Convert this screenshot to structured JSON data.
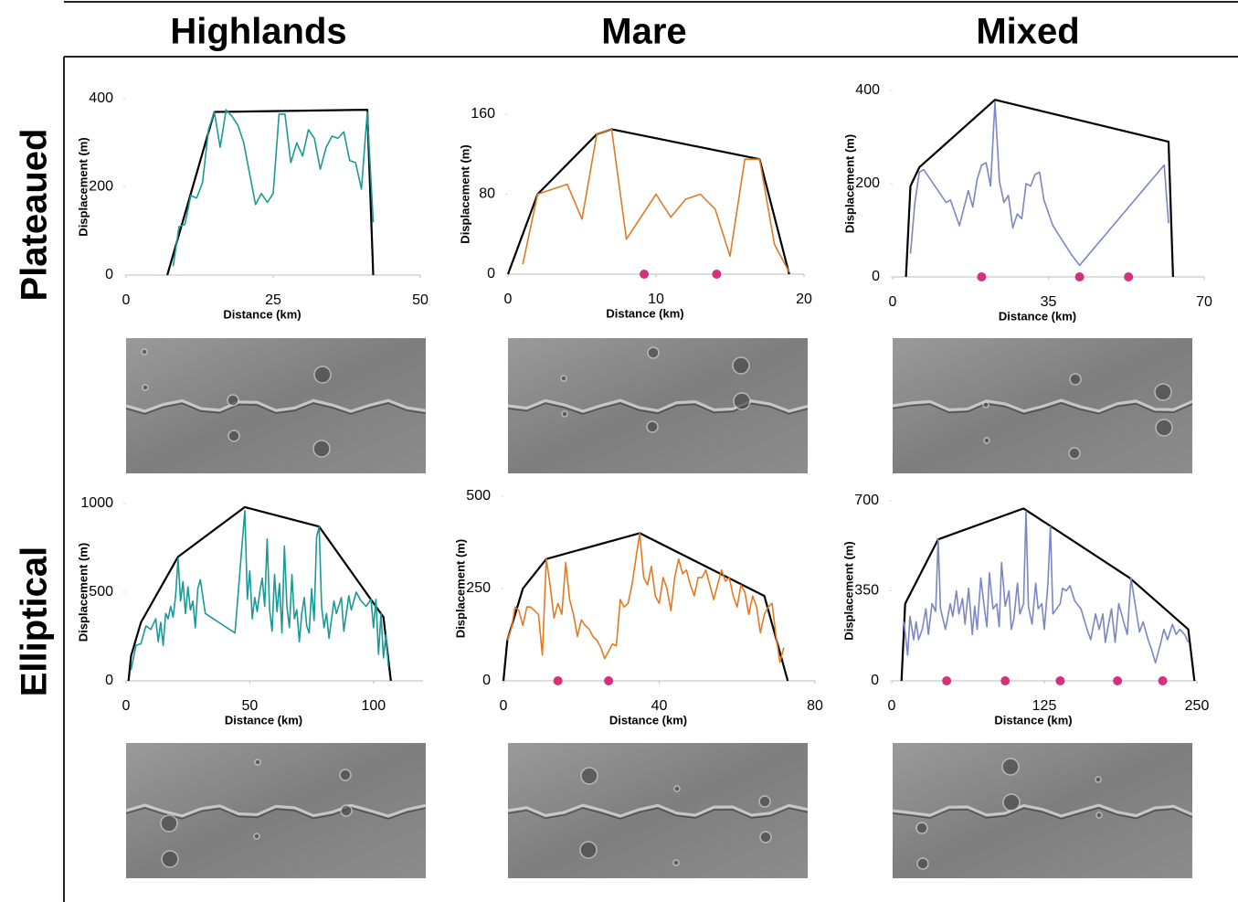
{
  "headers": {
    "columns": [
      "Highlands",
      "Mare",
      "Mixed"
    ],
    "rows": [
      "Plateaued",
      "Elliptical"
    ]
  },
  "chart_data": [
    {
      "type": "line",
      "xlabel": "Distance (km)",
      "ylabel": "Displacement (m)",
      "xlim": [
        0,
        50
      ],
      "ylim": [
        0,
        400
      ],
      "xticks": [
        0,
        25,
        50
      ],
      "yticks": [
        0,
        200,
        400
      ],
      "profile": {
        "color": "#1a9a96",
        "x": [
          8,
          9,
          10,
          11,
          12,
          13,
          14,
          15,
          16,
          17,
          18,
          19,
          20,
          21,
          22,
          23,
          24,
          25,
          26,
          27,
          28,
          29,
          30,
          31,
          32,
          33,
          34,
          35,
          36,
          37,
          38,
          39,
          40,
          41,
          42
        ],
        "values": [
          20,
          110,
          115,
          180,
          175,
          210,
          330,
          370,
          290,
          375,
          360,
          340,
          300,
          230,
          160,
          185,
          165,
          185,
          365,
          365,
          255,
          300,
          270,
          330,
          310,
          240,
          290,
          315,
          310,
          325,
          260,
          255,
          195,
          370,
          120
        ]
      },
      "envelope": {
        "color": "#000000",
        "x": [
          7,
          15,
          41,
          42
        ],
        "values": [
          0,
          370,
          375,
          0
        ]
      }
    },
    {
      "type": "line",
      "xlabel": "Distance (km)",
      "ylabel": "Displacement (m)",
      "xlim": [
        0,
        20
      ],
      "ylim": [
        0,
        160
      ],
      "xticks": [
        0,
        10,
        20
      ],
      "yticks": [
        0,
        80,
        160
      ],
      "profile": {
        "color": "#e07b24",
        "x": [
          1,
          2,
          4,
          5,
          6,
          7,
          8,
          10,
          11,
          12,
          13,
          14,
          15,
          16,
          17,
          18,
          19
        ],
        "values": [
          10,
          80,
          90,
          55,
          140,
          145,
          35,
          80,
          57,
          75,
          80,
          65,
          18,
          115,
          115,
          30,
          2
        ]
      },
      "envelope": {
        "color": "#000000",
        "x": [
          0,
          2,
          6,
          7,
          17,
          19
        ],
        "values": [
          0,
          80,
          140,
          145,
          115,
          0
        ]
      },
      "markers": {
        "color": "#d4317a",
        "x": [
          9.2,
          14.1
        ]
      }
    },
    {
      "type": "line",
      "xlabel": "Distance (km)",
      "ylabel": "Displacement (m)",
      "xlim": [
        0,
        70
      ],
      "ylim": [
        0,
        400
      ],
      "xticks": [
        0,
        35,
        70
      ],
      "yticks": [
        0,
        200,
        400
      ],
      "profile": {
        "color": "#7b86c4",
        "x": [
          4,
          5,
          6,
          7,
          12,
          13,
          15,
          17,
          18,
          19,
          20,
          21,
          22,
          23,
          24,
          25,
          26,
          27,
          28,
          29,
          30,
          31,
          32,
          33,
          34,
          36,
          40,
          42,
          61,
          62
        ],
        "values": [
          50,
          160,
          225,
          230,
          160,
          165,
          110,
          185,
          150,
          210,
          240,
          245,
          195,
          375,
          205,
          160,
          175,
          105,
          135,
          125,
          200,
          195,
          220,
          225,
          165,
          110,
          50,
          25,
          240,
          115
        ]
      },
      "envelope": {
        "color": "#000000",
        "x": [
          3,
          4,
          6,
          23,
          62,
          63
        ],
        "values": [
          0,
          195,
          235,
          380,
          290,
          0
        ]
      },
      "markers": {
        "color": "#d4317a",
        "x": [
          20,
          42,
          53
        ]
      }
    },
    {
      "type": "line",
      "xlabel": "Distance (km)",
      "ylabel": "Displacement (m)",
      "xlim": [
        0,
        120
      ],
      "ylim": [
        0,
        1000
      ],
      "xticks": [
        0,
        50,
        100
      ],
      "yticks": [
        0,
        500,
        1000
      ],
      "profile": {
        "color": "#1a9a96",
        "x": [
          2,
          4,
          6,
          8,
          10,
          12,
          13,
          14,
          15,
          16,
          17,
          18,
          19,
          20,
          21,
          22,
          23,
          24,
          25,
          26,
          27,
          28,
          29,
          30,
          32,
          44,
          47,
          48,
          49,
          50,
          51,
          52,
          53,
          54,
          55,
          56,
          57,
          58,
          59,
          60,
          61,
          62,
          63,
          64,
          65,
          66,
          67,
          68,
          69,
          70,
          71,
          72,
          73,
          74,
          75,
          76,
          77,
          78,
          79,
          80,
          81,
          82,
          84,
          85,
          87,
          88,
          90,
          91,
          93,
          95,
          97,
          99,
          100,
          101,
          102,
          103,
          104,
          105,
          106
        ],
        "values": [
          60,
          200,
          210,
          310,
          290,
          350,
          220,
          330,
          200,
          380,
          350,
          420,
          360,
          480,
          690,
          450,
          560,
          380,
          530,
          400,
          450,
          300,
          520,
          570,
          380,
          270,
          790,
          960,
          460,
          620,
          350,
          470,
          390,
          500,
          580,
          420,
          800,
          400,
          280,
          600,
          390,
          550,
          270,
          760,
          420,
          300,
          600,
          350,
          400,
          220,
          380,
          470,
          310,
          270,
          520,
          340,
          810,
          870,
          420,
          300,
          380,
          240,
          450,
          380,
          470,
          280,
          480,
          400,
          500,
          450,
          420,
          460,
          300,
          460,
          150,
          380,
          130,
          260,
          80
        ]
      },
      "envelope": {
        "color": "#000000",
        "x": [
          1,
          2,
          6,
          21,
          48,
          78,
          104,
          107
        ],
        "values": [
          0,
          140,
          330,
          700,
          980,
          870,
          360,
          0
        ]
      }
    },
    {
      "type": "line",
      "xlabel": "Distance (km)",
      "ylabel": "Displacement (m)",
      "xlim": [
        0,
        80
      ],
      "ylim": [
        0,
        500
      ],
      "xticks": [
        0,
        40,
        80
      ],
      "yticks": [
        0,
        250,
        500
      ],
      "profile": {
        "color": "#e07b24",
        "x": [
          1,
          2,
          3,
          4,
          5,
          6,
          7,
          8,
          9,
          10,
          11,
          12,
          13,
          14,
          15,
          16,
          17,
          18,
          19,
          20,
          21,
          22,
          23,
          24,
          25,
          26,
          27,
          28,
          29,
          30,
          31,
          32,
          33,
          34,
          35,
          36,
          37,
          38,
          39,
          40,
          41,
          42,
          43,
          44,
          45,
          46,
          47,
          48,
          49,
          50,
          51,
          52,
          53,
          54,
          55,
          56,
          57,
          58,
          59,
          60,
          61,
          62,
          63,
          64,
          65,
          66,
          67,
          68,
          69,
          70,
          71,
          72
        ],
        "values": [
          110,
          140,
          200,
          190,
          150,
          200,
          200,
          190,
          180,
          70,
          330,
          260,
          170,
          210,
          180,
          320,
          220,
          180,
          120,
          165,
          150,
          140,
          120,
          110,
          90,
          60,
          80,
          100,
          95,
          220,
          200,
          210,
          260,
          330,
          400,
          280,
          260,
          310,
          230,
          210,
          280,
          250,
          190,
          280,
          330,
          290,
          300,
          260,
          230,
          280,
          280,
          300,
          260,
          220,
          260,
          300,
          270,
          280,
          230,
          200,
          260,
          240,
          180,
          230,
          200,
          130,
          180,
          200,
          210,
          120,
          50,
          90
        ]
      },
      "envelope": {
        "color": "#000000",
        "x": [
          0,
          1,
          5,
          11,
          35,
          67,
          73
        ],
        "values": [
          0,
          110,
          250,
          330,
          400,
          230,
          0
        ]
      },
      "markers": {
        "color": "#d4317a",
        "x": [
          14,
          27
        ]
      }
    },
    {
      "type": "line",
      "xlabel": "Distance (km)",
      "ylabel": "Displacement (m)",
      "xlim": [
        0,
        250
      ],
      "ylim": [
        0,
        700
      ],
      "xticks": [
        0,
        125,
        250
      ],
      "yticks": [
        0,
        350,
        700
      ],
      "profile": {
        "color": "#7b86c4",
        "x": [
          10,
          13,
          15,
          18,
          20,
          22,
          25,
          28,
          30,
          33,
          36,
          38,
          40,
          44,
          48,
          50,
          53,
          55,
          58,
          60,
          63,
          66,
          68,
          70,
          73,
          76,
          78,
          80,
          83,
          86,
          88,
          90,
          93,
          96,
          98,
          100,
          103,
          105,
          108,
          110,
          112,
          115,
          118,
          120,
          123,
          125,
          128,
          130,
          132,
          135,
          138,
          140,
          143,
          146,
          150,
          155,
          160,
          163,
          167,
          170,
          173,
          175,
          178,
          180,
          183,
          186,
          190,
          193,
          196,
          200,
          203,
          206,
          210,
          213,
          216,
          220,
          223,
          226,
          230,
          233,
          236,
          240,
          243
        ],
        "values": [
          230,
          100,
          250,
          160,
          230,
          160,
          200,
          280,
          180,
          300,
          270,
          550,
          280,
          200,
          300,
          250,
          350,
          260,
          320,
          220,
          360,
          180,
          290,
          200,
          400,
          280,
          210,
          420,
          280,
          300,
          210,
          460,
          290,
          350,
          200,
          240,
          380,
          260,
          300,
          660,
          290,
          220,
          380,
          280,
          300,
          200,
          380,
          600,
          260,
          280,
          300,
          360,
          350,
          370,
          310,
          280,
          200,
          160,
          260,
          200,
          260,
          150,
          230,
          280,
          150,
          300,
          230,
          180,
          400,
          280,
          190,
          230,
          160,
          120,
          70,
          140,
          200,
          160,
          220,
          180,
          200,
          180,
          150
        ]
      },
      "envelope": {
        "color": "#000000",
        "x": [
          8,
          11,
          38,
          108,
          195,
          243,
          248
        ],
        "values": [
          0,
          300,
          550,
          670,
          400,
          200,
          0
        ]
      },
      "markers": {
        "color": "#d4317a",
        "x": [
          45,
          93,
          138,
          185,
          222
        ]
      }
    }
  ]
}
